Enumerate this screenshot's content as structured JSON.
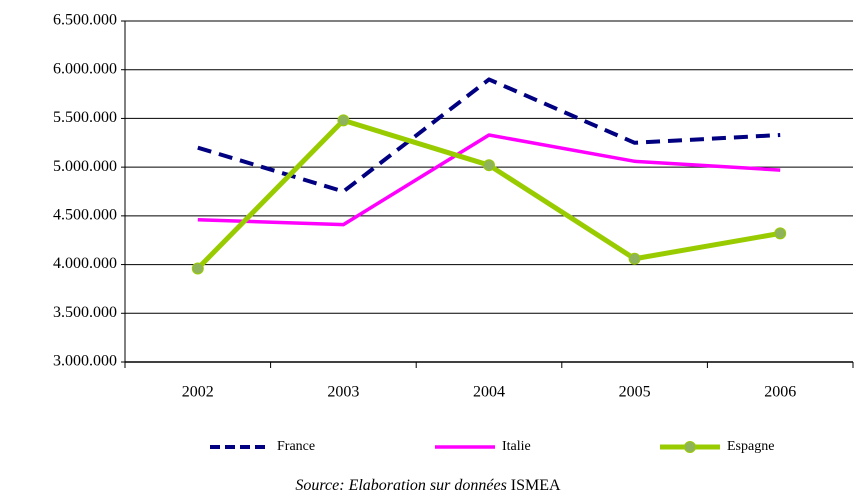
{
  "chart_data": {
    "type": "line",
    "categories": [
      "2002",
      "2003",
      "2004",
      "2005",
      "2006"
    ],
    "series": [
      {
        "name": "France",
        "color": "#000080",
        "dashed": true,
        "marker": false,
        "values": [
          5200000,
          4750000,
          5900000,
          5250000,
          5330000
        ]
      },
      {
        "name": "Italie",
        "color": "#ff00ff",
        "dashed": false,
        "marker": false,
        "values": [
          4460000,
          4410000,
          5330000,
          5060000,
          4970000
        ]
      },
      {
        "name": "Espagne",
        "color": "#99cc00",
        "dashed": false,
        "marker": true,
        "values": [
          3960000,
          5480000,
          5020000,
          4060000,
          4320000
        ]
      }
    ],
    "ylim": [
      3000000,
      6500000
    ],
    "yticks": [
      {
        "value": 3000000,
        "label": "3.000.000"
      },
      {
        "value": 3500000,
        "label": "3.500.000"
      },
      {
        "value": 4000000,
        "label": "4.000.000"
      },
      {
        "value": 4500000,
        "label": "4.500.000"
      },
      {
        "value": 5000000,
        "label": "5.000.000"
      },
      {
        "value": 5500000,
        "label": "5.500.000"
      },
      {
        "value": 6000000,
        "label": "6.000.000"
      },
      {
        "value": 6500000,
        "label": "6.500.000"
      }
    ],
    "grid": true,
    "legend": "bottom",
    "source": [
      "Source: Elaboration sur données",
      "ISMEA"
    ]
  }
}
